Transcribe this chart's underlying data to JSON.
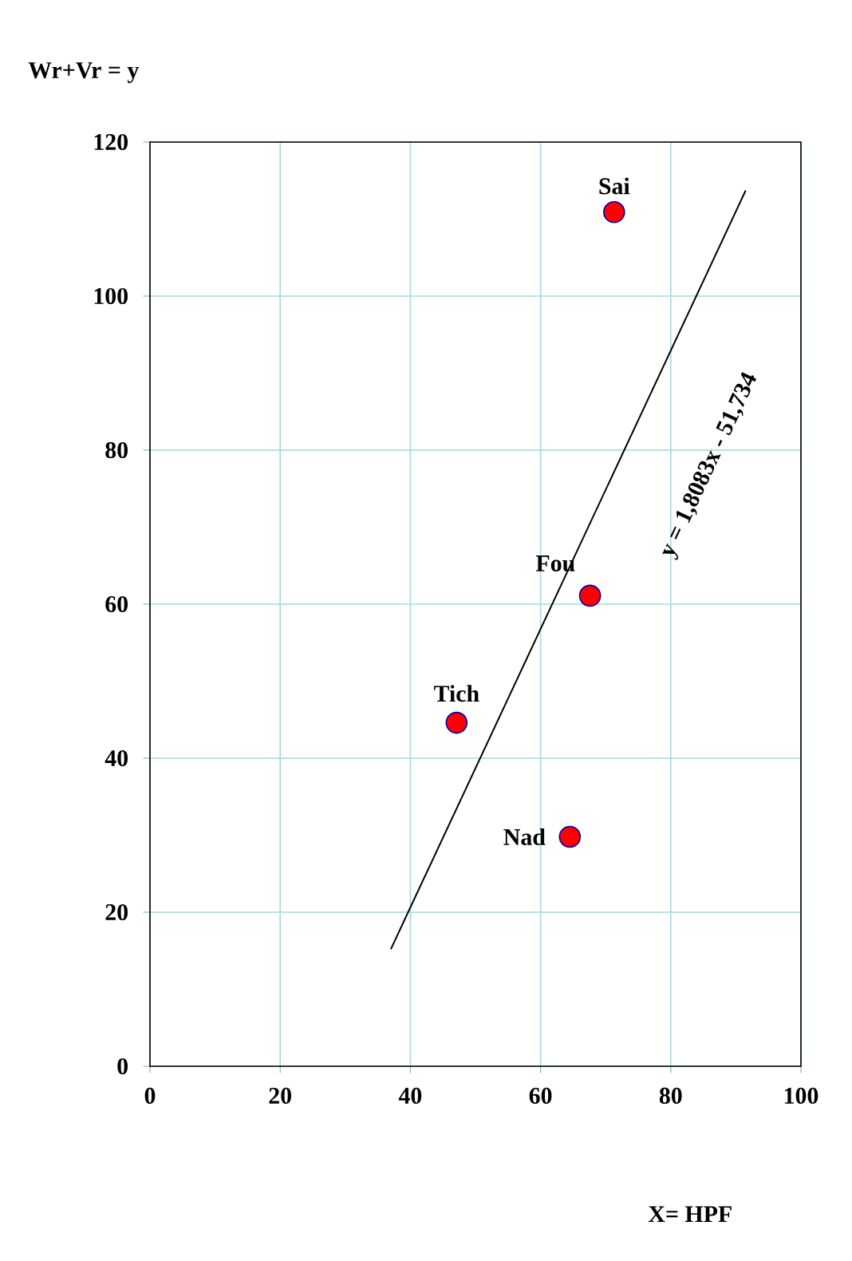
{
  "chart_data": {
    "type": "scatter",
    "xlabel": "X= HPF",
    "ylabel": "Wr+Vr = y",
    "xlim": [
      0,
      100
    ],
    "ylim": [
      0,
      120
    ],
    "xticks": [
      0,
      20,
      40,
      60,
      80,
      100
    ],
    "yticks": [
      0,
      20,
      40,
      60,
      80,
      100,
      120
    ],
    "grid": true,
    "series": [
      {
        "marker": "circle",
        "color": "#ff0000",
        "x": [
          71.3,
          67.6,
          47.1,
          64.5
        ],
        "values": [
          110.9,
          61.1,
          44.6,
          29.8
        ]
      },
      {
        "type": "line",
        "marker": "none",
        "color": "#000000",
        "x": [
          37,
          91.5
        ],
        "values": [
          15.2,
          113.7
        ]
      }
    ],
    "annotations": [
      {
        "text": "Sai",
        "x": 71.3,
        "y": 110.9
      },
      {
        "text": "Fou",
        "x": 67.6,
        "y": 61.1
      },
      {
        "text": "Tich",
        "x": 47.1,
        "y": 44.6
      },
      {
        "text": "Nad",
        "x": 64.5,
        "y": 29.8
      },
      "y = 1,8083x - 51,734"
    ]
  }
}
